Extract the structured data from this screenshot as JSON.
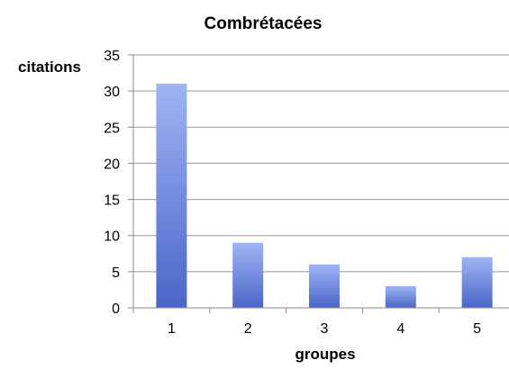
{
  "chart_data": {
    "type": "bar",
    "title": "Combrétacées",
    "xlabel": "groupes",
    "ylabel": "citations",
    "categories": [
      "1",
      "2",
      "3",
      "4",
      "5"
    ],
    "values": [
      31,
      9,
      6,
      3,
      7
    ],
    "ylim": [
      0,
      35
    ],
    "yticks": [
      0,
      5,
      10,
      15,
      20,
      25,
      30,
      35
    ],
    "grid": true,
    "legend": "none",
    "colors": {
      "bar_top": "#9fb4f5",
      "bar_bottom": "#4a66c8",
      "grid": "#9a9a9a",
      "axis": "#8a8a8a",
      "text": "#000000"
    }
  }
}
